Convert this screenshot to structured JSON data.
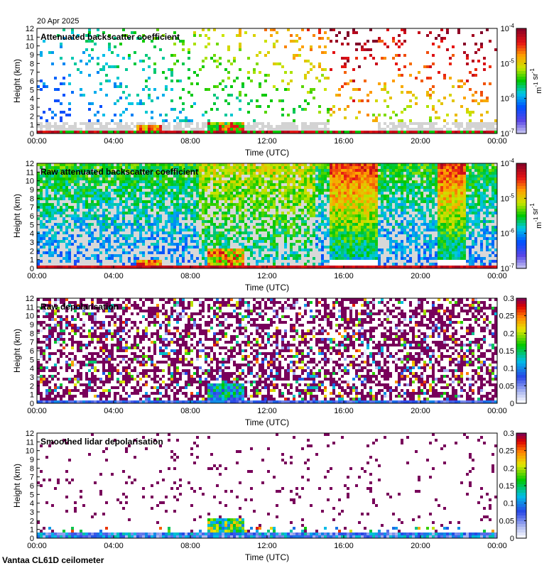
{
  "date": "20 Apr 2025",
  "footer": "Vantaa CL61D ceilometer",
  "chart_data": [
    {
      "type": "heatmap",
      "title": "Attenuated backscatter coefficient",
      "xlabel": "Time (UTC)",
      "ylabel": "Height (km)",
      "xticks": [
        "00:00",
        "04:00",
        "08:00",
        "12:00",
        "16:00",
        "20:00",
        "00:00"
      ],
      "yticks": [
        0,
        1,
        2,
        3,
        4,
        5,
        6,
        7,
        8,
        9,
        10,
        11,
        12
      ],
      "ylim": [
        0,
        12
      ],
      "colorbar": {
        "scale": "log",
        "ticks": [
          "10^-7",
          "10^-6",
          "10^-5",
          "10^-4"
        ],
        "label": "m^-1 sr^-1"
      }
    },
    {
      "type": "heatmap",
      "title": "Raw attenuated backscatter coefficient",
      "xlabel": "Time (UTC)",
      "ylabel": "Height (km)",
      "xticks": [
        "00:00",
        "04:00",
        "08:00",
        "12:00",
        "16:00",
        "20:00",
        "00:00"
      ],
      "yticks": [
        0,
        1,
        2,
        3,
        4,
        5,
        6,
        7,
        8,
        9,
        10,
        11,
        12
      ],
      "ylim": [
        0,
        12
      ],
      "colorbar": {
        "scale": "log",
        "ticks": [
          "10^-7",
          "10^-6",
          "10^-5",
          "10^-4"
        ],
        "label": "m^-1 sr^-1"
      }
    },
    {
      "type": "heatmap",
      "title": "Raw depolarisation",
      "xlabel": "Time (UTC)",
      "ylabel": "Height (km)",
      "xticks": [
        "00:00",
        "04:00",
        "08:00",
        "12:00",
        "16:00",
        "20:00",
        "00:00"
      ],
      "yticks": [
        0,
        1,
        2,
        3,
        4,
        5,
        6,
        7,
        8,
        9,
        10,
        11,
        12
      ],
      "ylim": [
        0,
        12
      ],
      "colorbar": {
        "scale": "linear",
        "ticks": [
          "0",
          "0.05",
          "0.1",
          "0.15",
          "0.2",
          "0.25",
          "0.3"
        ]
      }
    },
    {
      "type": "heatmap",
      "title": "Smoothed lidar depolarisation",
      "xlabel": "Time (UTC)",
      "ylabel": "Height (km)",
      "xticks": [
        "00:00",
        "04:00",
        "08:00",
        "12:00",
        "16:00",
        "20:00",
        "00:00"
      ],
      "yticks": [
        0,
        1,
        2,
        3,
        4,
        5,
        6,
        7,
        8,
        9,
        10,
        11,
        12
      ],
      "ylim": [
        0,
        12
      ],
      "colorbar": {
        "scale": "linear",
        "ticks": [
          "0",
          "0.05",
          "0.1",
          "0.15",
          "0.2",
          "0.25",
          "0.3"
        ]
      }
    }
  ]
}
